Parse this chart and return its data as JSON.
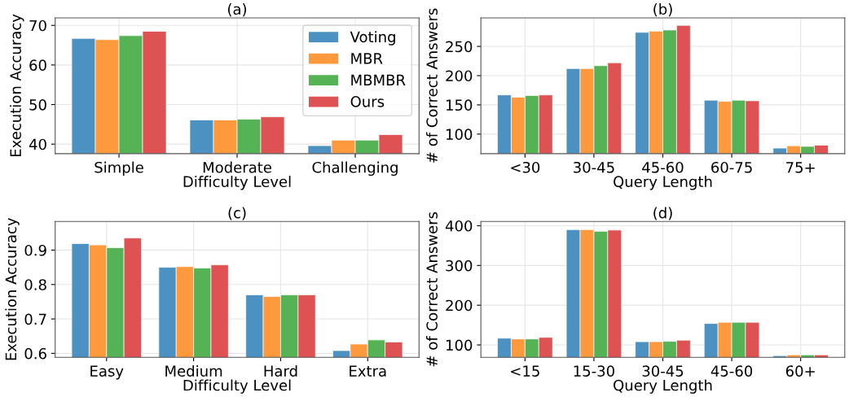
{
  "chart_data": [
    {
      "type": "bar",
      "title": "(a)",
      "xlabel": "Difficulty Level",
      "ylabel": "Execution Accuracy",
      "categories": [
        "Simple",
        "Moderate",
        "Challenging"
      ],
      "ylim": [
        37.6,
        71.9
      ],
      "yticks": [
        40,
        50,
        60,
        70
      ],
      "grid": true,
      "legend": "top right",
      "series": [
        {
          "name": "Voting",
          "color": "#4b92c3",
          "values": [
            66.7,
            46.1,
            39.6
          ]
        },
        {
          "name": "MBR",
          "color": "#ff993e",
          "values": [
            66.4,
            46.1,
            41.0
          ]
        },
        {
          "name": "MBMBR",
          "color": "#55b355",
          "values": [
            67.4,
            46.3,
            41.0
          ]
        },
        {
          "name": "Ours",
          "color": "#de5253",
          "values": [
            68.5,
            46.9,
            42.4
          ]
        }
      ]
    },
    {
      "type": "bar",
      "title": "(b)",
      "xlabel": "Query Length",
      "ylabel": "# of Correct Answers",
      "categories": [
        "<30",
        "30-45",
        "45-60",
        "60-75",
        "75+"
      ],
      "ylim": [
        66.6,
        298.8
      ],
      "yticks": [
        100,
        150,
        200,
        250
      ],
      "grid": true,
      "series": [
        {
          "color": "#4b92c3",
          "values": [
            167,
            212,
            274,
            158,
            76
          ]
        },
        {
          "color": "#ff993e",
          "values": [
            163,
            212,
            276,
            156,
            80
          ]
        },
        {
          "color": "#55b355",
          "values": [
            166,
            217,
            278,
            158,
            79
          ]
        },
        {
          "color": "#de5253",
          "values": [
            167,
            222,
            286,
            157,
            81
          ]
        }
      ]
    },
    {
      "type": "bar",
      "title": "(c)",
      "xlabel": "Difficulty Level",
      "ylabel": "Execution Accuracy",
      "categories": [
        "Easy",
        "Medium",
        "Hard",
        "Extra"
      ],
      "ylim": [
        0.5886,
        0.983
      ],
      "yticks": [
        0.6,
        0.7,
        0.8,
        0.9
      ],
      "grid": true,
      "series": [
        {
          "color": "#4b92c3",
          "values": [
            0.919,
            0.85,
            0.77,
            0.608
          ]
        },
        {
          "color": "#ff993e",
          "values": [
            0.915,
            0.852,
            0.765,
            0.627
          ]
        },
        {
          "color": "#55b355",
          "values": [
            0.907,
            0.848,
            0.77,
            0.639
          ]
        },
        {
          "color": "#de5253",
          "values": [
            0.935,
            0.857,
            0.77,
            0.633
          ]
        }
      ]
    },
    {
      "type": "bar",
      "title": "(d)",
      "xlabel": "Query Length",
      "ylabel": "# of Correct Answers",
      "categories": [
        "<15",
        "15-30",
        "30-45",
        "45-60",
        "60+"
      ],
      "ylim": [
        68.9,
        410.6
      ],
      "yticks": [
        100,
        200,
        300,
        400
      ],
      "grid": true,
      "series": [
        {
          "color": "#4b92c3",
          "values": [
            117,
            390,
            108,
            154,
            73
          ]
        },
        {
          "color": "#ff993e",
          "values": [
            115,
            390,
            108,
            157,
            75
          ]
        },
        {
          "color": "#55b355",
          "values": [
            115,
            386,
            109,
            157,
            75
          ]
        },
        {
          "color": "#de5253",
          "values": [
            119,
            389,
            112,
            157,
            75
          ]
        }
      ]
    }
  ]
}
